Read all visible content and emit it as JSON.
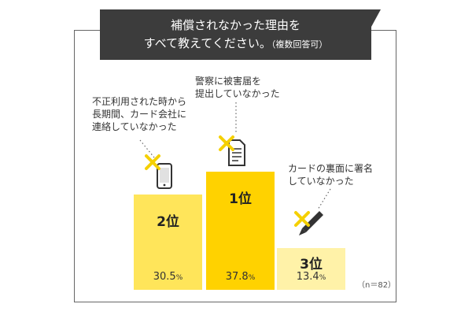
{
  "title": {
    "line1": "補償されなかった理由を",
    "line2": "すべて教えてください。",
    "note": "（複数回答可）"
  },
  "sample_note": "（n＝82）",
  "colors": {
    "title_bg": "#3c3c3c",
    "rank1": "#ffd200",
    "rank2": "#ffe55a",
    "rank3": "#fff2a8",
    "cross": "#f5d000",
    "icon": "#333333"
  },
  "chart_data": {
    "type": "bar",
    "unit": "%",
    "categories": [
      "不正利用された時から長期間、カード会社に連絡していなかった",
      "警察に被害届を提出していなかった",
      "カードの裏面に署名していなかった"
    ],
    "values": [
      30.5,
      37.8,
      13.4
    ],
    "ranks": [
      "2位",
      "1位",
      "3位"
    ],
    "value_labels": [
      "30.5",
      "37.8",
      "13.4"
    ],
    "icons": [
      "smartphone-icon",
      "document-icon",
      "pen-icon"
    ],
    "ylim": [
      0,
      40
    ]
  },
  "callouts": [
    [
      "不正利用された時から",
      "長期間、カード会社に",
      "連絡していなかった"
    ],
    [
      "警察に被害届を",
      "提出していなかった"
    ],
    [
      "カードの裏面に署名",
      "していなかった"
    ]
  ]
}
